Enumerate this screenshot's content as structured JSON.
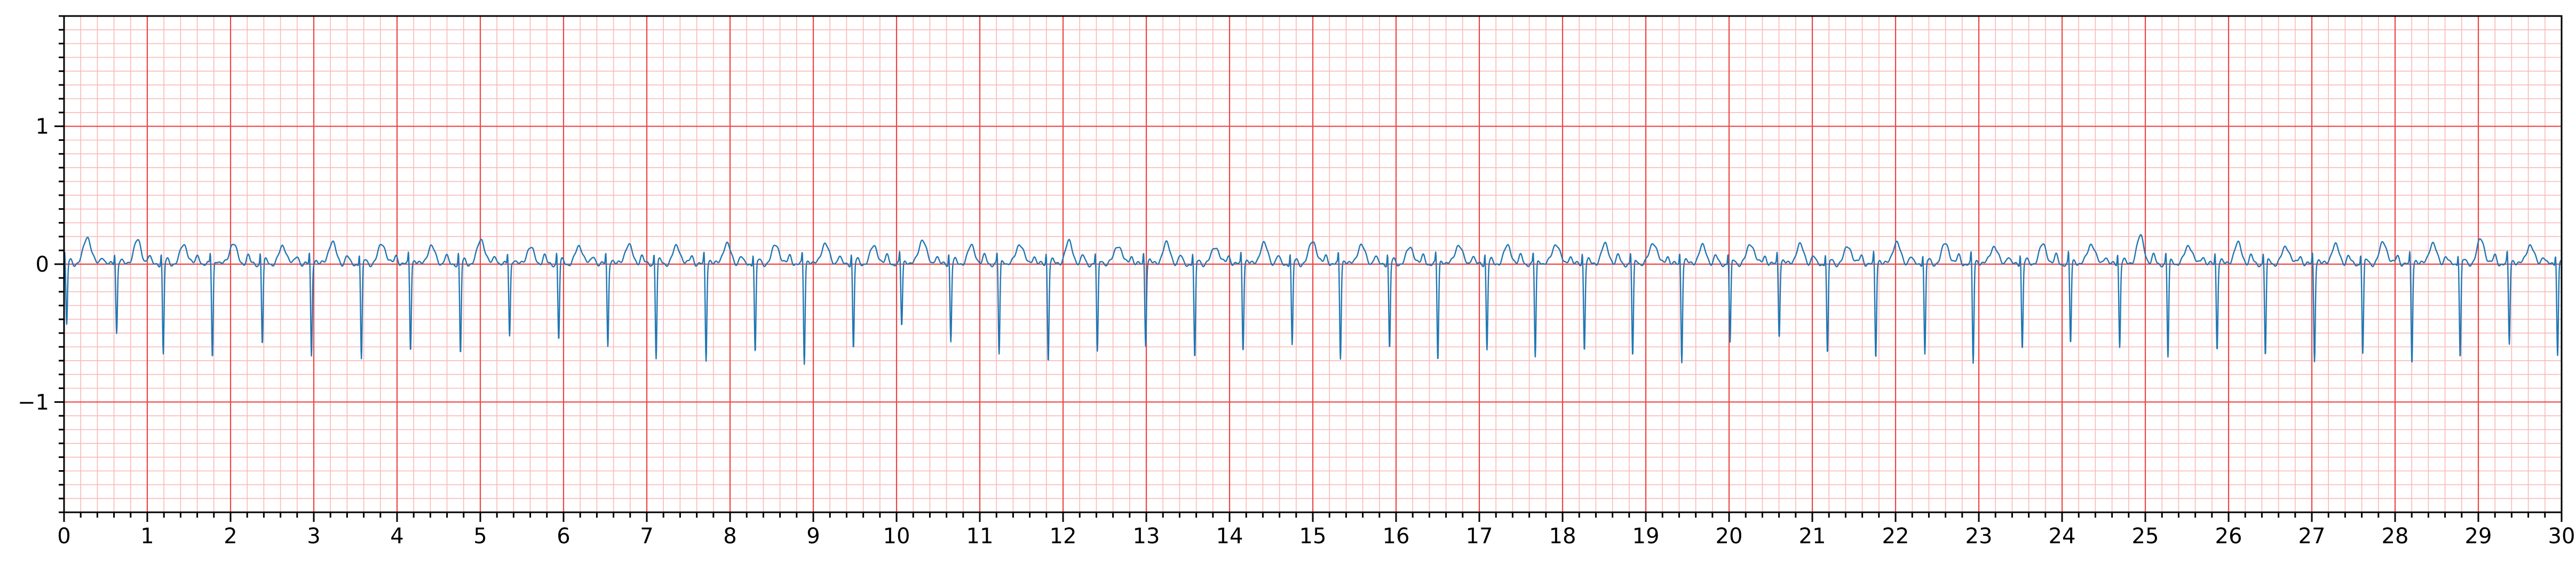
{
  "chart_data": {
    "type": "line",
    "title": "",
    "xlabel": "",
    "ylabel": "",
    "xlim": [
      0,
      30
    ],
    "ylim": [
      -1.8,
      1.8
    ],
    "x_major_ticks": [
      0,
      1,
      2,
      3,
      4,
      5,
      6,
      7,
      8,
      9,
      10,
      11,
      12,
      13,
      14,
      15,
      16,
      17,
      18,
      19,
      20,
      21,
      22,
      23,
      24,
      25,
      26,
      27,
      28,
      29,
      30
    ],
    "x_tick_labels": [
      "0",
      "1",
      "2",
      "3",
      "4",
      "5",
      "6",
      "7",
      "8",
      "9",
      "10",
      "11",
      "12",
      "13",
      "14",
      "15",
      "16",
      "17",
      "18",
      "19",
      "20",
      "21",
      "22",
      "23",
      "24",
      "25",
      "26",
      "27",
      "28",
      "29",
      "30"
    ],
    "x_minor_step": 0.2,
    "y_major_ticks": [
      -1,
      0,
      1
    ],
    "y_tick_labels": [
      "−1",
      "0",
      "1"
    ],
    "y_minor_step": 0.1,
    "grid": {
      "major": true,
      "minor": true,
      "major_color": "#ee4444",
      "minor_color": "#f9b8b8"
    },
    "background": "#ffffff",
    "series": [
      {
        "color": "#1f77b4",
        "sample_rate_hz": 250,
        "beat_times": [
          0.02,
          0.62,
          1.18,
          1.77,
          2.37,
          2.96,
          3.56,
          4.15,
          4.75,
          5.34,
          5.93,
          6.52,
          7.1,
          7.7,
          8.29,
          8.88,
          9.47,
          10.05,
          10.64,
          11.22,
          11.81,
          12.4,
          12.98,
          13.57,
          14.15,
          14.74,
          15.32,
          15.91,
          16.49,
          17.08,
          17.66,
          18.25,
          18.83,
          19.42,
          20.0,
          20.59,
          21.17,
          21.75,
          22.34,
          22.92,
          23.51,
          24.09,
          24.68,
          25.26,
          25.85,
          26.43,
          27.02,
          27.6,
          28.19,
          28.77,
          29.36,
          29.94
        ],
        "s_wave_depths": [
          -0.45,
          -0.5,
          -0.66,
          -0.68,
          -0.58,
          -0.67,
          -0.7,
          -0.62,
          -0.66,
          -0.52,
          -0.55,
          -0.6,
          -0.68,
          -0.7,
          -0.65,
          -0.72,
          -0.62,
          -0.45,
          -0.56,
          -0.66,
          -0.7,
          -0.65,
          -0.58,
          -0.7,
          -0.62,
          -0.6,
          -0.68,
          -0.62,
          -0.7,
          -0.62,
          -0.68,
          -0.62,
          -0.68,
          -0.7,
          -0.58,
          -0.52,
          -0.66,
          -0.68,
          -0.66,
          -0.72,
          -0.62,
          -0.58,
          -0.6,
          -0.68,
          -0.62,
          -0.67,
          -0.7,
          -0.65,
          -0.72,
          -0.68,
          -0.58,
          -0.66
        ],
        "t_wave_peaks": [
          0.2,
          0.17,
          0.14,
          0.15,
          0.13,
          0.16,
          0.15,
          0.13,
          0.18,
          0.12,
          0.13,
          0.14,
          0.13,
          0.15,
          0.14,
          0.15,
          0.13,
          0.18,
          0.13,
          0.15,
          0.16,
          0.14,
          0.15,
          0.13,
          0.15,
          0.17,
          0.14,
          0.12,
          0.14,
          0.13,
          0.15,
          0.14,
          0.16,
          0.13,
          0.15,
          0.14,
          0.13,
          0.16,
          0.15,
          0.13,
          0.14,
          0.15,
          0.2,
          0.14,
          0.15,
          0.13,
          0.14,
          0.16,
          0.15,
          0.18,
          0.14,
          0.15
        ]
      }
    ]
  }
}
